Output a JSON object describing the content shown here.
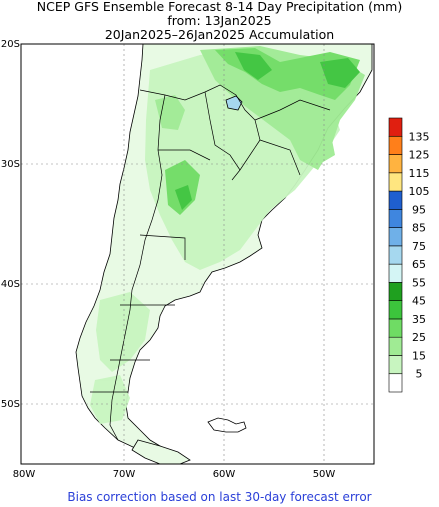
{
  "header": {
    "line1": "NCEP GFS Ensemble Forecast 8-14 Day Precipitation (mm)",
    "line2": "from: 13Jan2025",
    "line3": "20Jan2025–26Jan2025 Accumulation"
  },
  "axes": {
    "lat_labels": [
      "20S",
      "30S",
      "40S",
      "50S"
    ],
    "lon_labels": [
      "80W",
      "70W",
      "60W",
      "50W"
    ]
  },
  "legend": {
    "levels": [
      "5",
      "15",
      "25",
      "35",
      "45",
      "55",
      "65",
      "75",
      "85",
      "95",
      "105",
      "115",
      "125",
      "135"
    ],
    "colors": [
      "#ffffff",
      "#c8f5c0",
      "#a0eb94",
      "#6fdc64",
      "#3cc43c",
      "#1fa01f",
      "#d4f5f5",
      "#a6d8ef",
      "#6fb0e8",
      "#3f86df",
      "#1f5fcf",
      "#ffe680",
      "#ffb340",
      "#ff7f1a",
      "#e01f10"
    ]
  },
  "footer": {
    "note": "Bias correction based on last 30-day forecast error"
  }
}
